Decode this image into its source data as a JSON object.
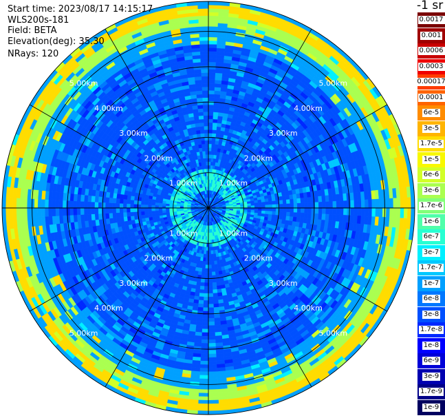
{
  "header": {
    "start_time": "Start time: 2023/08/17 14:15:17",
    "instrument": "WLS200s-181",
    "field": "Field: BETA",
    "elevation": "Elevation(deg): 35.30",
    "nrays": "NRays: 120"
  },
  "colorbar": {
    "unit_label": "-1 sr",
    "levels": [
      {
        "label": "0.0017",
        "color": "#7a0000"
      },
      {
        "label": "0.001",
        "color": "#a00000"
      },
      {
        "label": "0.0006",
        "color": "#c80000"
      },
      {
        "label": "0.0003",
        "color": "#f00000"
      },
      {
        "label": "0.00017",
        "color": "#ff3c00"
      },
      {
        "label": "0.0001",
        "color": "#ff6400"
      },
      {
        "label": "6e-5",
        "color": "#ff8c00"
      },
      {
        "label": "3e-5",
        "color": "#ffb400"
      },
      {
        "label": "1.7e-5",
        "color": "#ffdc00"
      },
      {
        "label": "1e-5",
        "color": "#f8f800"
      },
      {
        "label": "6e-6",
        "color": "#d2ff28"
      },
      {
        "label": "3e-6",
        "color": "#aaff50"
      },
      {
        "label": "1.7e-6",
        "color": "#82ff78"
      },
      {
        "label": "1e-6",
        "color": "#50ffaa"
      },
      {
        "label": "6e-7",
        "color": "#28ffd2"
      },
      {
        "label": "3e-7",
        "color": "#00f0ff"
      },
      {
        "label": "1.7e-7",
        "color": "#00c8ff"
      },
      {
        "label": "1e-7",
        "color": "#00a0ff"
      },
      {
        "label": "6e-8",
        "color": "#0078ff"
      },
      {
        "label": "3e-8",
        "color": "#0050ff"
      },
      {
        "label": "1.7e-8",
        "color": "#0028ff"
      },
      {
        "label": "1e-8",
        "color": "#0000ff"
      },
      {
        "label": "6e-9",
        "color": "#0000d8"
      },
      {
        "label": "3e-9",
        "color": "#0000b0"
      },
      {
        "label": "1.7e-9",
        "color": "#000088"
      },
      {
        "label": "1e-9",
        "color": "#000060"
      }
    ]
  },
  "chart_data": {
    "type": "heatmap",
    "projection": "polar PPI",
    "field": "BETA",
    "elevation_deg": 35.3,
    "n_rays": 120,
    "range_rings_km": [
      1,
      2,
      3,
      4,
      5
    ],
    "ring_labels": [
      "1.00km",
      "2.00km",
      "3.00km",
      "4.00km",
      "5.00km"
    ],
    "spoke_step_deg": 30,
    "dominant_value_by_range_km": [
      {
        "range_km": [
          0.0,
          0.5
        ],
        "value": "3e-8"
      },
      {
        "range_km": [
          0.5,
          1.1
        ],
        "value": "6e-7"
      },
      {
        "range_km": [
          1.1,
          4.6
        ],
        "value": "3e-8"
      },
      {
        "range_km": [
          4.6,
          5.15
        ],
        "value": "1e-7"
      },
      {
        "range_km": [
          5.15,
          5.4
        ],
        "value": "3e-6"
      },
      {
        "range_km": [
          5.4,
          5.7
        ],
        "value": "1.7e-5"
      },
      {
        "range_km": [
          5.7,
          5.85
        ],
        "value": "1e-7"
      }
    ]
  }
}
